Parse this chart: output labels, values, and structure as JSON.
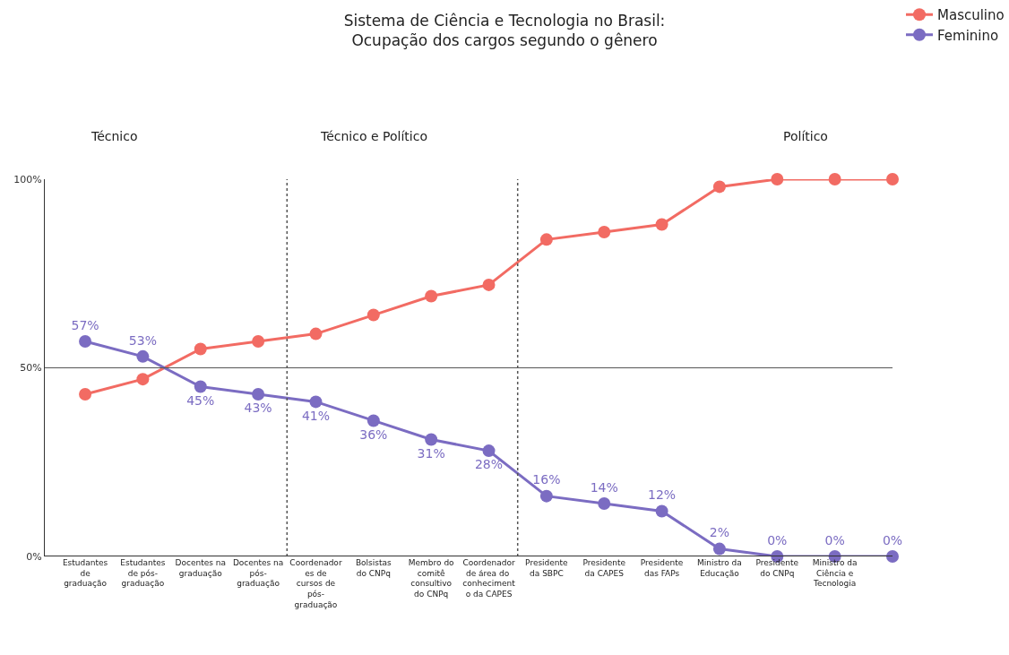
{
  "chart_data": {
    "type": "line",
    "title": "Sistema de Ciência e Tecnologia no Brasil:\nOcupação dos cargos segundo o gênero",
    "categories": [
      "Estudantes de graduação",
      "Estudantes de pós-graduação",
      "Docentes na graduação",
      "Docentes na pós-graduação",
      "Coordenadores de cursos de pós-graduação",
      "Bolsistas do CNPq",
      "Membro do comitê consultivo do CNPq",
      "Coordenador de área do conhecimento da CAPES",
      "Presidente da SBPC",
      "Presidente da CAPES",
      "Presidente das FAPs",
      "Ministro da Educação",
      "Presidente do CNPq",
      "Ministro da Ciência e Tecnologia",
      null
    ],
    "series": [
      {
        "name": "Masculino",
        "color": "#f26b63",
        "values": [
          43,
          47,
          55,
          57,
          59,
          64,
          69,
          72,
          84,
          86,
          88,
          98,
          100,
          100,
          100
        ]
      },
      {
        "name": "Feminino",
        "color": "#7b6cc2",
        "values": [
          57,
          53,
          45,
          43,
          41,
          36,
          31,
          28,
          16,
          14,
          12,
          2,
          0,
          0,
          0
        ],
        "value_labels": [
          "57%",
          "53%",
          "45%",
          "43%",
          "41%",
          "36%",
          "31%",
          "28%",
          "16%",
          "14%",
          "12%",
          "2%",
          "0%",
          "0%",
          "0%"
        ]
      }
    ],
    "ylim": [
      0,
      100
    ],
    "yticks": [
      {
        "value": 0,
        "label": "0%"
      },
      {
        "value": 50,
        "label": "50%"
      },
      {
        "value": 100,
        "label": "100%"
      }
    ],
    "ref_lines": [
      {
        "axis": "y",
        "value": 50,
        "color": "#555555",
        "line_style": "solid"
      }
    ],
    "annotations": [
      "Técnico",
      "Técnico e Político",
      "Político"
    ],
    "marker": "circle",
    "line_style": "solid",
    "legend": "top right"
  }
}
